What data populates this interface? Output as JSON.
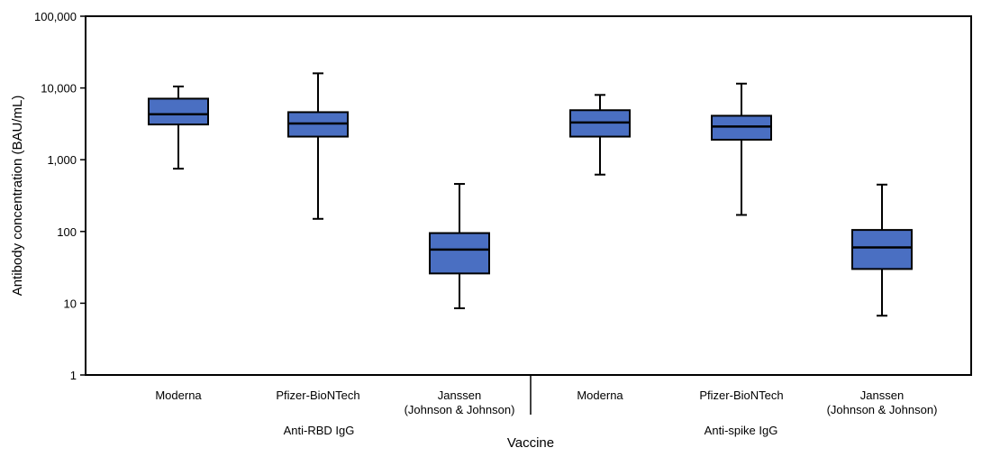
{
  "chart_data": {
    "type": "box",
    "title": "",
    "xlabel": "Vaccine",
    "ylabel": "Antibody concentration (BAU/mL)",
    "yscale": "log",
    "ylim": [
      1,
      100000
    ],
    "yticks": [
      1,
      10,
      100,
      1000,
      10000,
      100000
    ],
    "ytick_labels": [
      "1",
      "10",
      "100",
      "1,000",
      "10,000",
      "100,000"
    ],
    "box_color": "#4a6fc2",
    "groups": [
      {
        "label": "Anti-RBD IgG",
        "boxes": [
          {
            "label": [
              "Moderna"
            ],
            "min": 750,
            "q1": 3100,
            "median": 4300,
            "q3": 7100,
            "max": 10500
          },
          {
            "label": [
              "Pfizer-BioNTech"
            ],
            "min": 150,
            "q1": 2100,
            "median": 3200,
            "q3": 4600,
            "max": 16000
          },
          {
            "label": [
              "Janssen",
              "(Johnson & Johnson)"
            ],
            "min": 8.5,
            "q1": 26,
            "median": 56,
            "q3": 95,
            "max": 460
          }
        ]
      },
      {
        "label": "Anti-spike IgG",
        "boxes": [
          {
            "label": [
              "Moderna"
            ],
            "min": 620,
            "q1": 2100,
            "median": 3300,
            "q3": 4900,
            "max": 8000
          },
          {
            "label": [
              "Pfizer-BioNTech"
            ],
            "min": 170,
            "q1": 1900,
            "median": 2900,
            "q3": 4100,
            "max": 11500
          },
          {
            "label": [
              "Janssen",
              "(Johnson & Johnson)"
            ],
            "min": 6.7,
            "q1": 30,
            "median": 60,
            "q3": 105,
            "max": 450
          }
        ]
      }
    ]
  }
}
